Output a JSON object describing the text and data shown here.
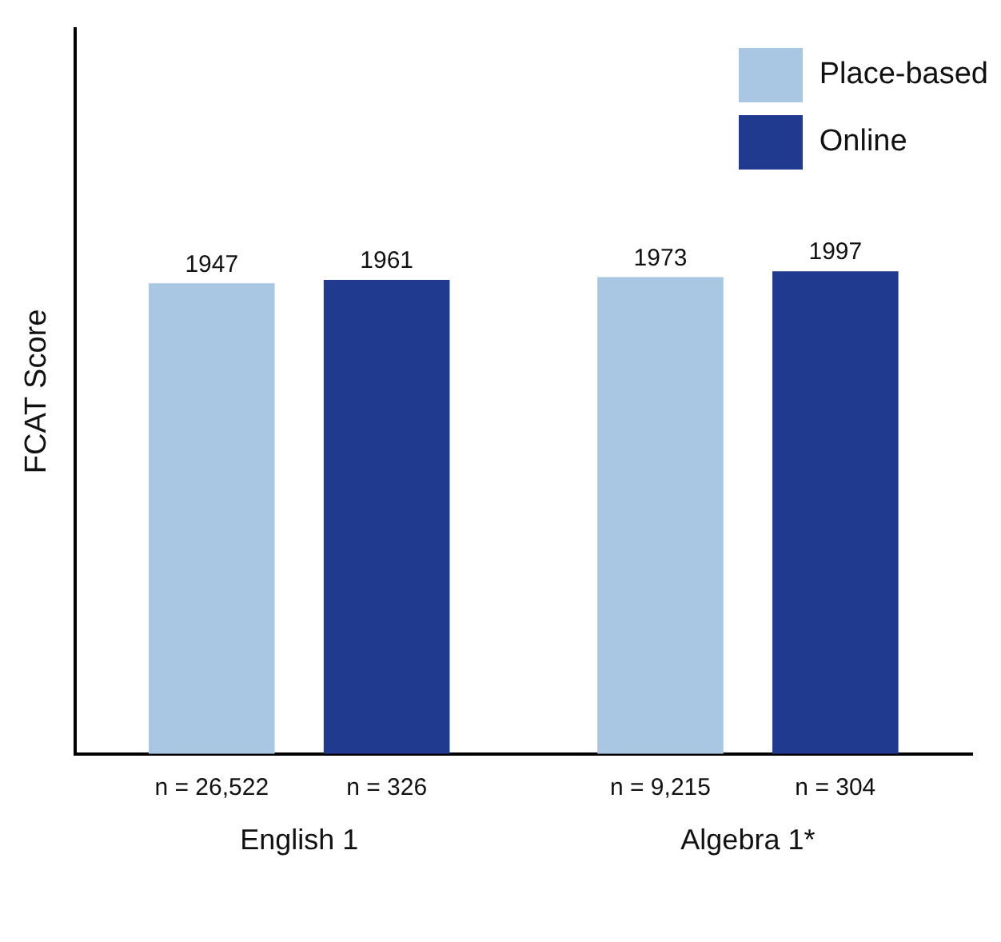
{
  "chart_data": {
    "type": "bar",
    "ylabel": "FCAT Score",
    "categories": [
      "English 1",
      "Algebra 1*"
    ],
    "series": [
      {
        "name": "Place-based",
        "color": "#a9c6e3",
        "values": [
          1947,
          1973
        ]
      },
      {
        "name": "Online",
        "color": "#1f3a8f",
        "values": [
          1961,
          1997
        ]
      }
    ],
    "ylim": [
      0,
      3000
    ],
    "tick_labels": "x",
    "data_labels": true,
    "legend": "top right",
    "grid": false,
    "annotations": [
      "n = 26,522",
      "n = 326",
      "n = 9,215",
      "n = 304"
    ]
  }
}
